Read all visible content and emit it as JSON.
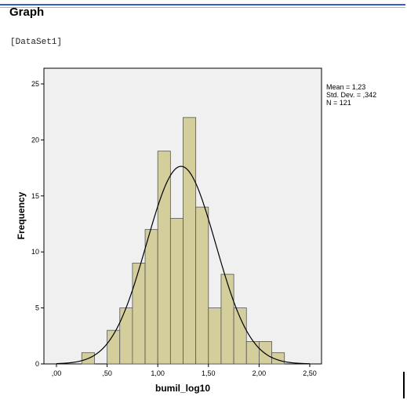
{
  "page": {
    "heading": "Graph",
    "dataset_label": "[DataSet1]"
  },
  "colors": {
    "plot_background": "#f0f0f0",
    "bar_fill": "#d3ce9c",
    "bar_stroke": "#555555",
    "curve": "#000000"
  },
  "chart_data": {
    "type": "bar",
    "subtype": "histogram",
    "xlabel": "bumil_log10",
    "ylabel": "Frequency",
    "xlim": [
      -0.05,
      2.62
    ],
    "ylim": [
      0,
      27
    ],
    "x_ticks": [
      0,
      0.5,
      1.0,
      1.5,
      2.0,
      2.5
    ],
    "x_tick_labels": [
      ",00",
      ",50",
      "1,00",
      "1,50",
      "2,00",
      "2,50"
    ],
    "y_ticks": [
      0,
      5,
      10,
      15,
      20,
      25
    ],
    "y_tick_labels": [
      "0",
      "5",
      "10",
      "15",
      "20",
      "25"
    ],
    "bin_width": 0.125,
    "bins": [
      {
        "start": 0.25,
        "end": 0.375,
        "count": 1
      },
      {
        "start": 0.375,
        "end": 0.5,
        "count": 0
      },
      {
        "start": 0.5,
        "end": 0.625,
        "count": 3
      },
      {
        "start": 0.625,
        "end": 0.75,
        "count": 5
      },
      {
        "start": 0.75,
        "end": 0.875,
        "count": 9
      },
      {
        "start": 0.875,
        "end": 1.0,
        "count": 12
      },
      {
        "start": 1.0,
        "end": 1.125,
        "count": 19
      },
      {
        "start": 1.125,
        "end": 1.25,
        "count": 13
      },
      {
        "start": 1.25,
        "end": 1.375,
        "count": 22
      },
      {
        "start": 1.375,
        "end": 1.5,
        "count": 14
      },
      {
        "start": 1.5,
        "end": 1.625,
        "count": 5
      },
      {
        "start": 1.625,
        "end": 1.75,
        "count": 8
      },
      {
        "start": 1.75,
        "end": 1.875,
        "count": 5
      },
      {
        "start": 1.875,
        "end": 2.0,
        "count": 2
      },
      {
        "start": 2.0,
        "end": 2.125,
        "count": 2
      },
      {
        "start": 2.125,
        "end": 2.25,
        "count": 1
      }
    ],
    "normal_curve": {
      "mean": 1.23,
      "std_dev": 0.342,
      "n": 121
    },
    "stats_lines": [
      "Mean = 1,23",
      "Std. Dev. = ,342",
      "N = 121"
    ],
    "grid": false,
    "legend_position": "top-right outside plot"
  }
}
